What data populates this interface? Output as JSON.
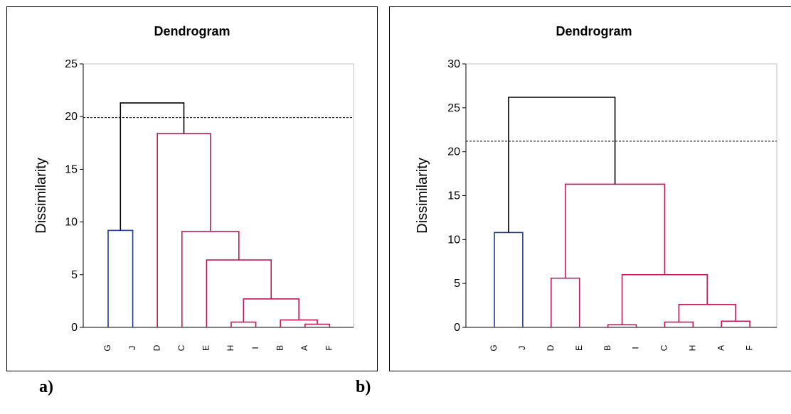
{
  "colors": {
    "top": "#000000",
    "cluster_blue": "#1f3a93",
    "cluster_red": "#c2185b",
    "cutoff": "#000000"
  },
  "chart_data": [
    {
      "type": "dendrogram",
      "panel_label": "a)",
      "title": "Dendrogram",
      "ylabel": "Dissimilarity",
      "xlabel": "",
      "ylim": [
        0,
        25
      ],
      "yticks": [
        0,
        5,
        10,
        15,
        20,
        25
      ],
      "grid": false,
      "leaf_order": [
        "G",
        "J",
        "D",
        "C",
        "E",
        "H",
        "I",
        "B",
        "A",
        "F"
      ],
      "cutoff": 19.9,
      "merges": [
        {
          "left": "H",
          "right": "I",
          "height": 0.5,
          "cluster": "red"
        },
        {
          "left": "A",
          "right": "F",
          "height": 0.3,
          "cluster": "red"
        },
        {
          "left": "B",
          "right": "AF",
          "height": 0.7,
          "cluster": "red"
        },
        {
          "left": "HI",
          "right": "BAF",
          "height": 2.7,
          "cluster": "red"
        },
        {
          "left": "E",
          "right": "HIBAF",
          "height": 6.4,
          "cluster": "red"
        },
        {
          "left": "C",
          "right": "EHIBAF",
          "height": 9.1,
          "cluster": "red"
        },
        {
          "left": "D",
          "right": "CEHIBAF",
          "height": 18.4,
          "cluster": "red"
        },
        {
          "left": "G",
          "right": "J",
          "height": 9.2,
          "cluster": "blue"
        },
        {
          "left": "GJ",
          "right": "DCEHIBAF",
          "height": 21.3,
          "cluster": "top"
        }
      ]
    },
    {
      "type": "dendrogram",
      "panel_label": "b)",
      "title": "Dendrogram",
      "ylabel": "Dissimilarity",
      "xlabel": "",
      "ylim": [
        0,
        30
      ],
      "yticks": [
        0,
        5,
        10,
        15,
        20,
        25,
        30
      ],
      "grid": false,
      "leaf_order": [
        "G",
        "J",
        "D",
        "E",
        "B",
        "I",
        "C",
        "H",
        "A",
        "F"
      ],
      "cutoff": 21.2,
      "merges": [
        {
          "left": "D",
          "right": "E",
          "height": 5.6,
          "cluster": "red"
        },
        {
          "left": "B",
          "right": "I",
          "height": 0.3,
          "cluster": "red"
        },
        {
          "left": "C",
          "right": "H",
          "height": 0.6,
          "cluster": "red"
        },
        {
          "left": "A",
          "right": "F",
          "height": 0.7,
          "cluster": "red"
        },
        {
          "left": "CH",
          "right": "AF",
          "height": 2.6,
          "cluster": "red"
        },
        {
          "left": "BI",
          "right": "CHAF",
          "height": 6.0,
          "cluster": "red"
        },
        {
          "left": "DE",
          "right": "BICHAF",
          "height": 16.3,
          "cluster": "red"
        },
        {
          "left": "G",
          "right": "J",
          "height": 10.8,
          "cluster": "blue"
        },
        {
          "left": "GJ",
          "right": "DEBICHAF",
          "height": 26.2,
          "cluster": "top"
        }
      ]
    }
  ]
}
